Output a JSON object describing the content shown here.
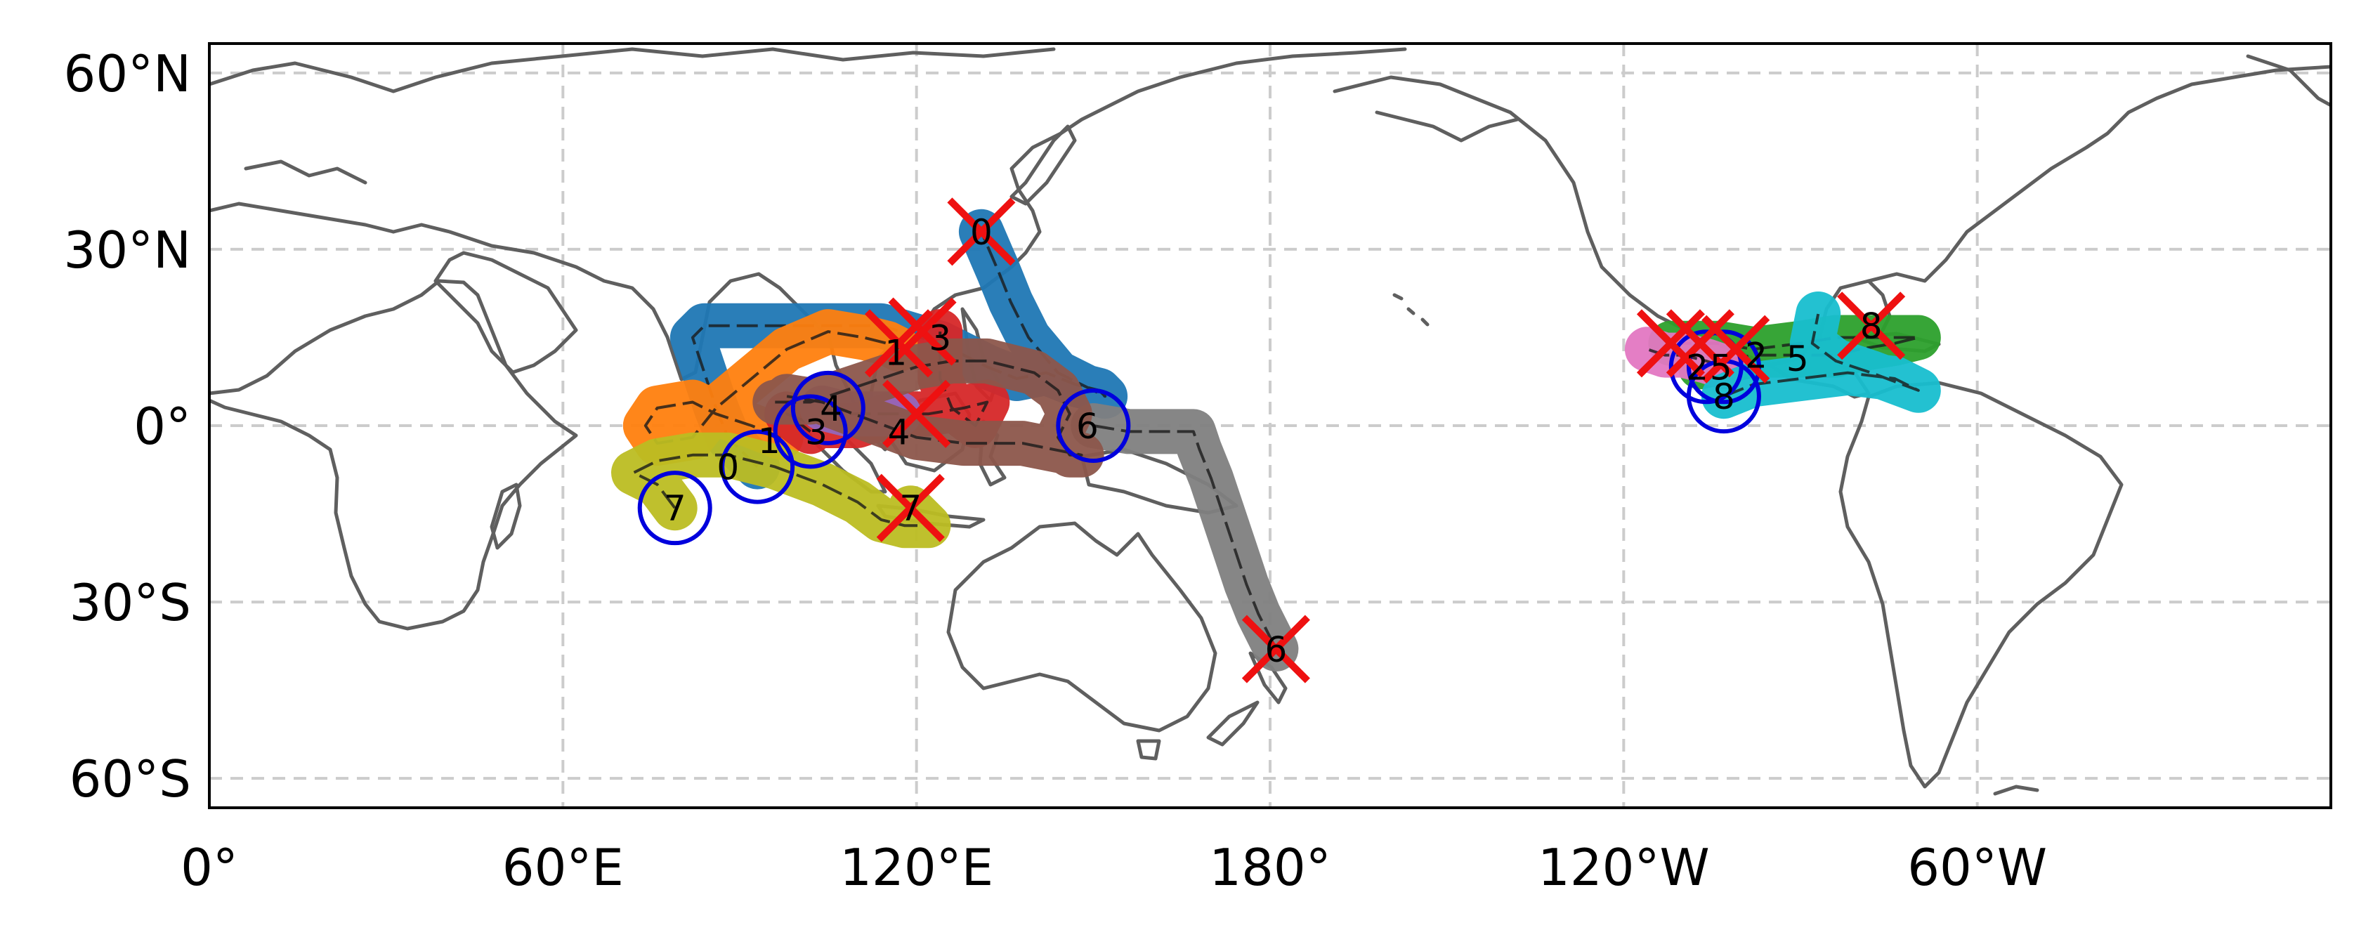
{
  "map": {
    "projection": "PlateCarree",
    "central_longitude": 180,
    "lon_range": [
      0,
      360
    ],
    "lat_range": [
      -65,
      65
    ],
    "gridlines": true,
    "gridline_style": "dashed",
    "x_ticks": [
      {
        "lon": 0,
        "label": "0°"
      },
      {
        "lon": 60,
        "label": "60°E"
      },
      {
        "lon": 120,
        "label": "120°E"
      },
      {
        "lon": 180,
        "label": "180°"
      },
      {
        "lon": 240,
        "label": "120°W"
      },
      {
        "lon": 300,
        "label": "60°W"
      }
    ],
    "y_ticks": [
      {
        "lat": 60,
        "label": "60°N"
      },
      {
        "lat": 30,
        "label": "30°N"
      },
      {
        "lat": 0,
        "label": "0°"
      },
      {
        "lat": -30,
        "label": "30°S"
      },
      {
        "lat": -60,
        "label": "60°S"
      }
    ]
  },
  "colors": {
    "coastline": "#5f5f5f",
    "grid": "#cccccc",
    "start_marker": "#0000dd",
    "end_marker": "#ee1111"
  },
  "tracks": [
    {
      "id": "0",
      "color": "#1f77b4",
      "start": [
        93,
        -7
      ],
      "end": [
        131,
        33
      ],
      "path": [
        [
          93,
          -7
        ],
        [
          88,
          -2
        ],
        [
          86,
          3
        ],
        [
          84,
          9
        ],
        [
          82,
          15
        ],
        [
          84,
          17
        ],
        [
          92,
          17
        ],
        [
          102,
          17
        ],
        [
          114,
          17
        ],
        [
          124,
          14
        ],
        [
          132,
          10
        ],
        [
          137,
          8
        ],
        [
          142,
          9
        ],
        [
          147,
          7
        ],
        [
          151,
          6
        ],
        [
          152,
          5
        ],
        [
          144,
          9
        ],
        [
          139,
          15
        ],
        [
          136,
          21
        ],
        [
          134,
          26
        ],
        [
          131,
          33
        ]
      ]
    },
    {
      "id": "1",
      "color": "#ff7f0e",
      "start": [
        97,
        -2
      ],
      "end": [
        117,
        13
      ],
      "path": [
        [
          97,
          -2
        ],
        [
          92,
          0
        ],
        [
          86,
          2
        ],
        [
          82,
          4
        ],
        [
          76,
          3
        ],
        [
          74,
          0
        ],
        [
          76,
          -3
        ],
        [
          82,
          -2
        ],
        [
          86,
          3
        ],
        [
          92,
          8
        ],
        [
          98,
          13
        ],
        [
          105,
          16
        ],
        [
          111,
          15
        ],
        [
          115,
          14
        ],
        [
          117,
          13
        ]
      ]
    },
    {
      "id": "2",
      "color": "#2ca02c",
      "start": [
        253,
        10
      ],
      "end": [
        248,
        14
      ],
      "path": [
        [
          253,
          10
        ],
        [
          257,
          11
        ],
        [
          262,
          12
        ],
        [
          270,
          12
        ],
        [
          276,
          12
        ],
        [
          280,
          13
        ],
        [
          286,
          14
        ],
        [
          290,
          15
        ],
        [
          284,
          15
        ],
        [
          276,
          15
        ],
        [
          270,
          14
        ],
        [
          262,
          13
        ],
        [
          256,
          14
        ],
        [
          252,
          14
        ],
        [
          248,
          14
        ]
      ]
    },
    {
      "id": "3",
      "color": "#d62728",
      "start": [
        102,
        -1
      ],
      "end": [
        124,
        16
      ],
      "path": [
        [
          102,
          -1
        ],
        [
          98,
          2
        ],
        [
          103,
          0
        ],
        [
          110,
          0
        ],
        [
          116,
          2
        ],
        [
          122,
          2
        ],
        [
          128,
          3
        ],
        [
          132,
          4
        ],
        [
          130,
          0
        ],
        [
          126,
          3
        ],
        [
          124,
          8
        ],
        [
          124,
          12
        ],
        [
          124,
          16
        ]
      ]
    },
    {
      "id": "4",
      "color": "#9467bd",
      "start": [
        104,
        3
      ],
      "end": [
        117,
        2
      ],
      "path": [
        [
          104,
          3
        ],
        [
          108,
          2
        ],
        [
          112,
          2
        ],
        [
          117,
          2
        ]
      ]
    },
    {
      "id": "5",
      "color": "#e377c2",
      "start": [
        257,
        10
      ],
      "end": [
        244,
        13
      ],
      "path": [
        [
          257,
          10
        ],
        [
          254,
          11
        ],
        [
          250,
          12
        ],
        [
          247,
          12
        ],
        [
          244,
          13
        ]
      ]
    },
    {
      "id": "6",
      "color": "#7f7f7f",
      "start": [
        150,
        0
      ],
      "end": [
        181,
        -38
      ],
      "path": [
        [
          150,
          0
        ],
        [
          156,
          -1
        ],
        [
          163,
          -1
        ],
        [
          167,
          -1
        ],
        [
          168,
          -4
        ],
        [
          170,
          -9
        ],
        [
          172,
          -15
        ],
        [
          174,
          -21
        ],
        [
          176,
          -27
        ],
        [
          178,
          -32
        ],
        [
          181,
          -38
        ]
      ]
    },
    {
      "id": "7",
      "color": "#bcbd22",
      "start": [
        79,
        -14
      ],
      "end": [
        119,
        -14
      ],
      "path": [
        [
          79,
          -14
        ],
        [
          76,
          -10
        ],
        [
          72,
          -8
        ],
        [
          76,
          -6
        ],
        [
          82,
          -5
        ],
        [
          88,
          -5
        ],
        [
          96,
          -7
        ],
        [
          104,
          -10
        ],
        [
          110,
          -13
        ],
        [
          114,
          -16
        ],
        [
          118,
          -17
        ],
        [
          122,
          -17
        ],
        [
          119,
          -14
        ]
      ]
    },
    {
      "id": "8",
      "color": "#17becf",
      "start": [
        257,
        5
      ],
      "end": [
        273,
        19
      ],
      "path": [
        [
          257,
          5
        ],
        [
          262,
          7
        ],
        [
          270,
          8
        ],
        [
          278,
          9
        ],
        [
          286,
          8
        ],
        [
          290,
          6
        ],
        [
          282,
          9
        ],
        [
          276,
          11
        ],
        [
          272,
          14
        ],
        [
          273,
          19
        ]
      ]
    },
    {
      "id": "m",
      "color": "#8c564b",
      "start": [
        96,
        4
      ],
      "end": [
        148,
        -5
      ],
      "path": [
        [
          96,
          4
        ],
        [
          102,
          4
        ],
        [
          108,
          6
        ],
        [
          114,
          8
        ],
        [
          120,
          10
        ],
        [
          126,
          11
        ],
        [
          132,
          11
        ],
        [
          140,
          9
        ],
        [
          144,
          6
        ],
        [
          146,
          2
        ],
        [
          144,
          -2
        ],
        [
          146,
          -5
        ],
        [
          148,
          -5
        ],
        [
          138,
          -3
        ],
        [
          128,
          -3
        ],
        [
          120,
          -2
        ],
        [
          112,
          1
        ],
        [
          104,
          4
        ],
        [
          98,
          5
        ]
      ]
    }
  ],
  "start_labels": [
    {
      "text": "0",
      "lon": 88,
      "lat": -7
    },
    {
      "text": "1",
      "lon": 95,
      "lat": -2.5
    },
    {
      "text": "3",
      "lon": 103,
      "lat": -1
    },
    {
      "text": "4",
      "lon": 105.5,
      "lat": 3
    },
    {
      "text": "6",
      "lon": 149,
      "lat": 0
    },
    {
      "text": "7",
      "lon": 79,
      "lat": -14
    },
    {
      "text": "2",
      "lon": 252.5,
      "lat": 10
    },
    {
      "text": "5",
      "lon": 256.5,
      "lat": 10
    },
    {
      "text": "8",
      "lon": 257,
      "lat": 5
    }
  ],
  "end_labels": [
    {
      "text": "0",
      "lon": 131,
      "lat": 33
    },
    {
      "text": "1",
      "lon": 116.5,
      "lat": 12.5
    },
    {
      "text": "3",
      "lon": 124,
      "lat": 15
    },
    {
      "text": "4",
      "lon": 117,
      "lat": -1
    },
    {
      "text": "7",
      "lon": 119,
      "lat": -14
    },
    {
      "text": "6",
      "lon": 181,
      "lat": -38
    },
    {
      "text": "2",
      "lon": 262.5,
      "lat": 12
    },
    {
      "text": "5",
      "lon": 269.5,
      "lat": 11.5
    },
    {
      "text": "8",
      "lon": 282,
      "lat": 17
    }
  ],
  "end_markers": [
    [
      131,
      33
    ],
    [
      117,
      14
    ],
    [
      121,
      16
    ],
    [
      120,
      2
    ],
    [
      119,
      -14
    ],
    [
      181,
      -38
    ],
    [
      248,
      14
    ],
    [
      253,
      14
    ],
    [
      259,
      13
    ],
    [
      282,
      17
    ]
  ],
  "start_circles": [
    [
      93,
      -7
    ],
    [
      102,
      -1
    ],
    [
      105,
      3
    ],
    [
      150,
      0
    ],
    [
      79,
      -14
    ],
    [
      254,
      10
    ],
    [
      257,
      10
    ],
    [
      257,
      5
    ]
  ]
}
